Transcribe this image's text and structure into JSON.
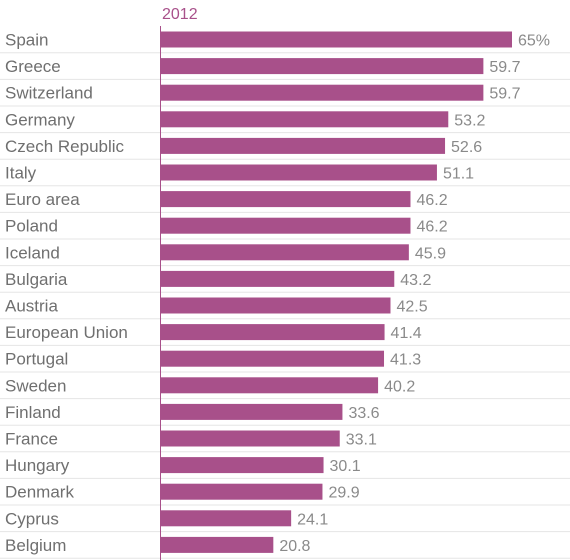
{
  "chart_data": {
    "type": "bar",
    "orientation": "horizontal",
    "series_label": "2012",
    "categories": [
      "Spain",
      "Greece",
      "Switzerland",
      "Germany",
      "Czech Republic",
      "Italy",
      "Euro area",
      "Poland",
      "Iceland",
      "Bulgaria",
      "Austria",
      "European Union",
      "Portugal",
      "Sweden",
      "Finland",
      "France",
      "Hungary",
      "Denmark",
      "Cyprus",
      "Belgium"
    ],
    "values": [
      65,
      59.7,
      59.7,
      53.2,
      52.6,
      51.1,
      46.2,
      46.2,
      45.9,
      43.2,
      42.5,
      41.4,
      41.3,
      40.2,
      33.6,
      33.1,
      30.1,
      29.9,
      24.1,
      20.8
    ],
    "value_labels": [
      "65%",
      "59.7",
      "59.7",
      "53.2",
      "52.6",
      "51.1",
      "46.2",
      "46.2",
      "45.9",
      "43.2",
      "42.5",
      "41.4",
      "41.3",
      "40.2",
      "33.6",
      "33.1",
      "30.1",
      "29.9",
      "24.1",
      "20.8"
    ],
    "xlim": [
      0,
      65
    ],
    "grid": true,
    "colors": {
      "bar": "#a8508a",
      "header": "#a8508a",
      "axis": "#a8508a",
      "grid": "#e5e5e5"
    }
  }
}
